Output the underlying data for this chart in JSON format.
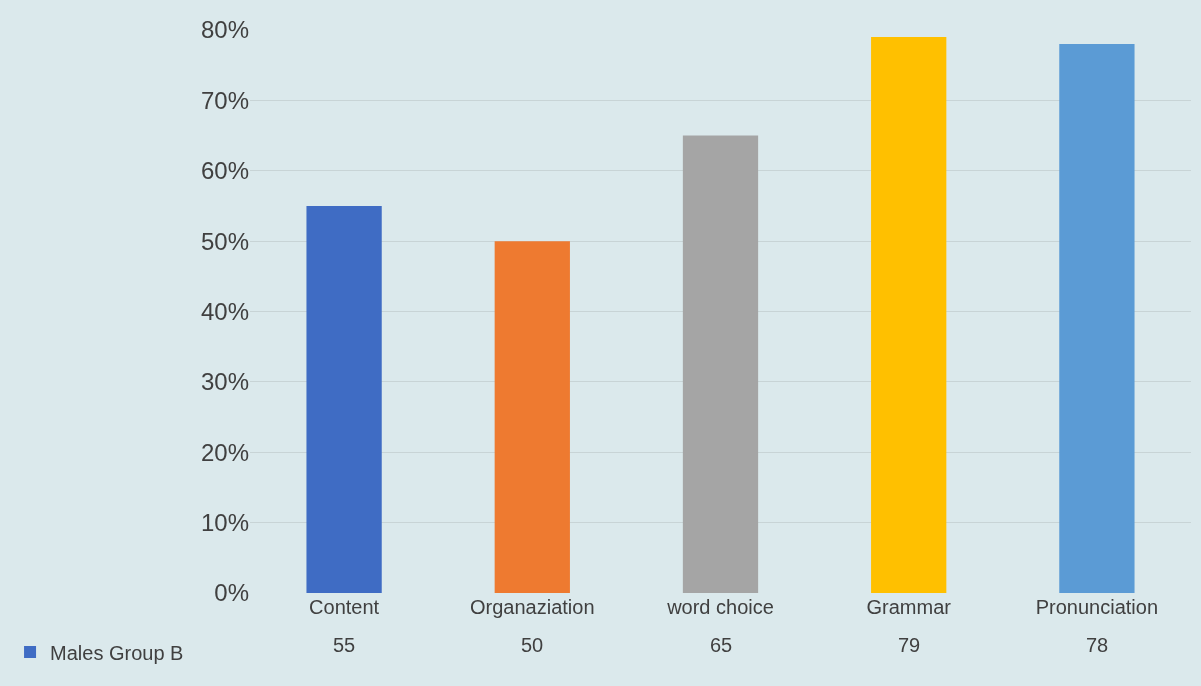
{
  "chart_data": {
    "type": "bar",
    "categories": [
      "Content",
      "Organaziation",
      "word choice",
      "Grammar",
      "Pronunciation"
    ],
    "series": [
      {
        "name": "Males Group B",
        "colors": [
          "#3f6cc4",
          "#ee7a30",
          "#a5a5a5",
          "#ffc000",
          "#5b9bd5"
        ],
        "values": [
          55,
          50,
          65,
          79,
          78
        ]
      }
    ],
    "ylim": [
      0,
      80
    ],
    "yticks": [
      {
        "value": 0,
        "label": "0%"
      },
      {
        "value": 10,
        "label": "10%"
      },
      {
        "value": 20,
        "label": "20%"
      },
      {
        "value": 30,
        "label": "30%"
      },
      {
        "value": 40,
        "label": "40%"
      },
      {
        "value": 50,
        "label": "50%"
      },
      {
        "value": 60,
        "label": "60%"
      },
      {
        "value": 70,
        "label": "70%"
      },
      {
        "value": 80,
        "label": "80%"
      }
    ],
    "grid": "y",
    "legend": "bottom left",
    "data_labels": true
  }
}
